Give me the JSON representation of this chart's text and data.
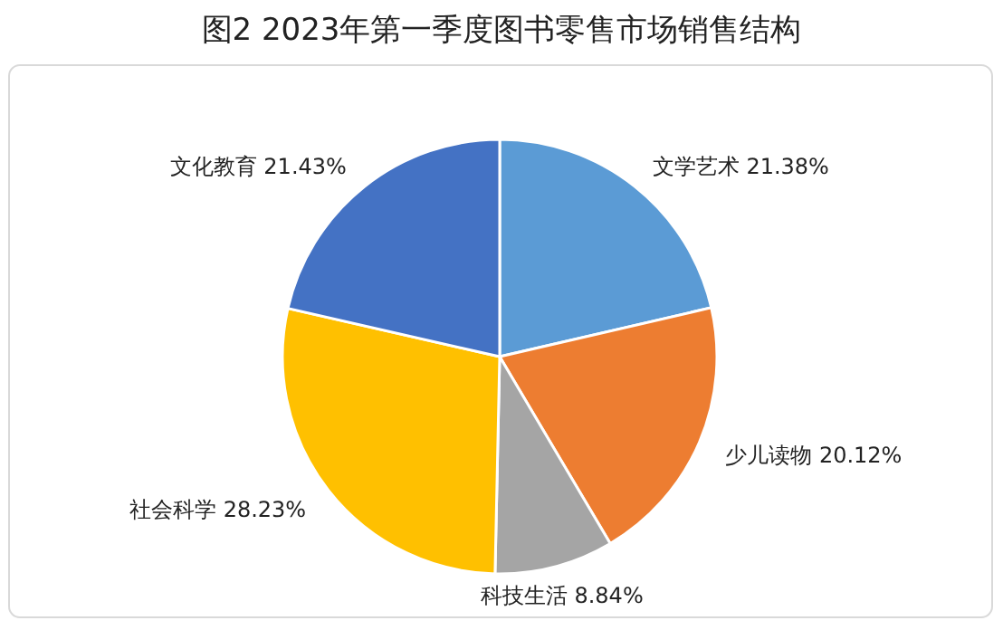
{
  "chart_data": {
    "type": "pie",
    "title": "图2  2023年第一季度图书零售市场销售结构",
    "categories": [
      "文学艺术",
      "少儿读物",
      "科技生活",
      "社会科学",
      "文化教育"
    ],
    "values": [
      21.38,
      20.12,
      8.84,
      28.23,
      21.43
    ],
    "value_labels": [
      "21.38%",
      "20.12%",
      "8.84%",
      "28.23%",
      "21.43%"
    ],
    "colors": [
      "#5b9bd5",
      "#ed7d31",
      "#a5a5a5",
      "#ffc000",
      "#4472c4"
    ]
  }
}
